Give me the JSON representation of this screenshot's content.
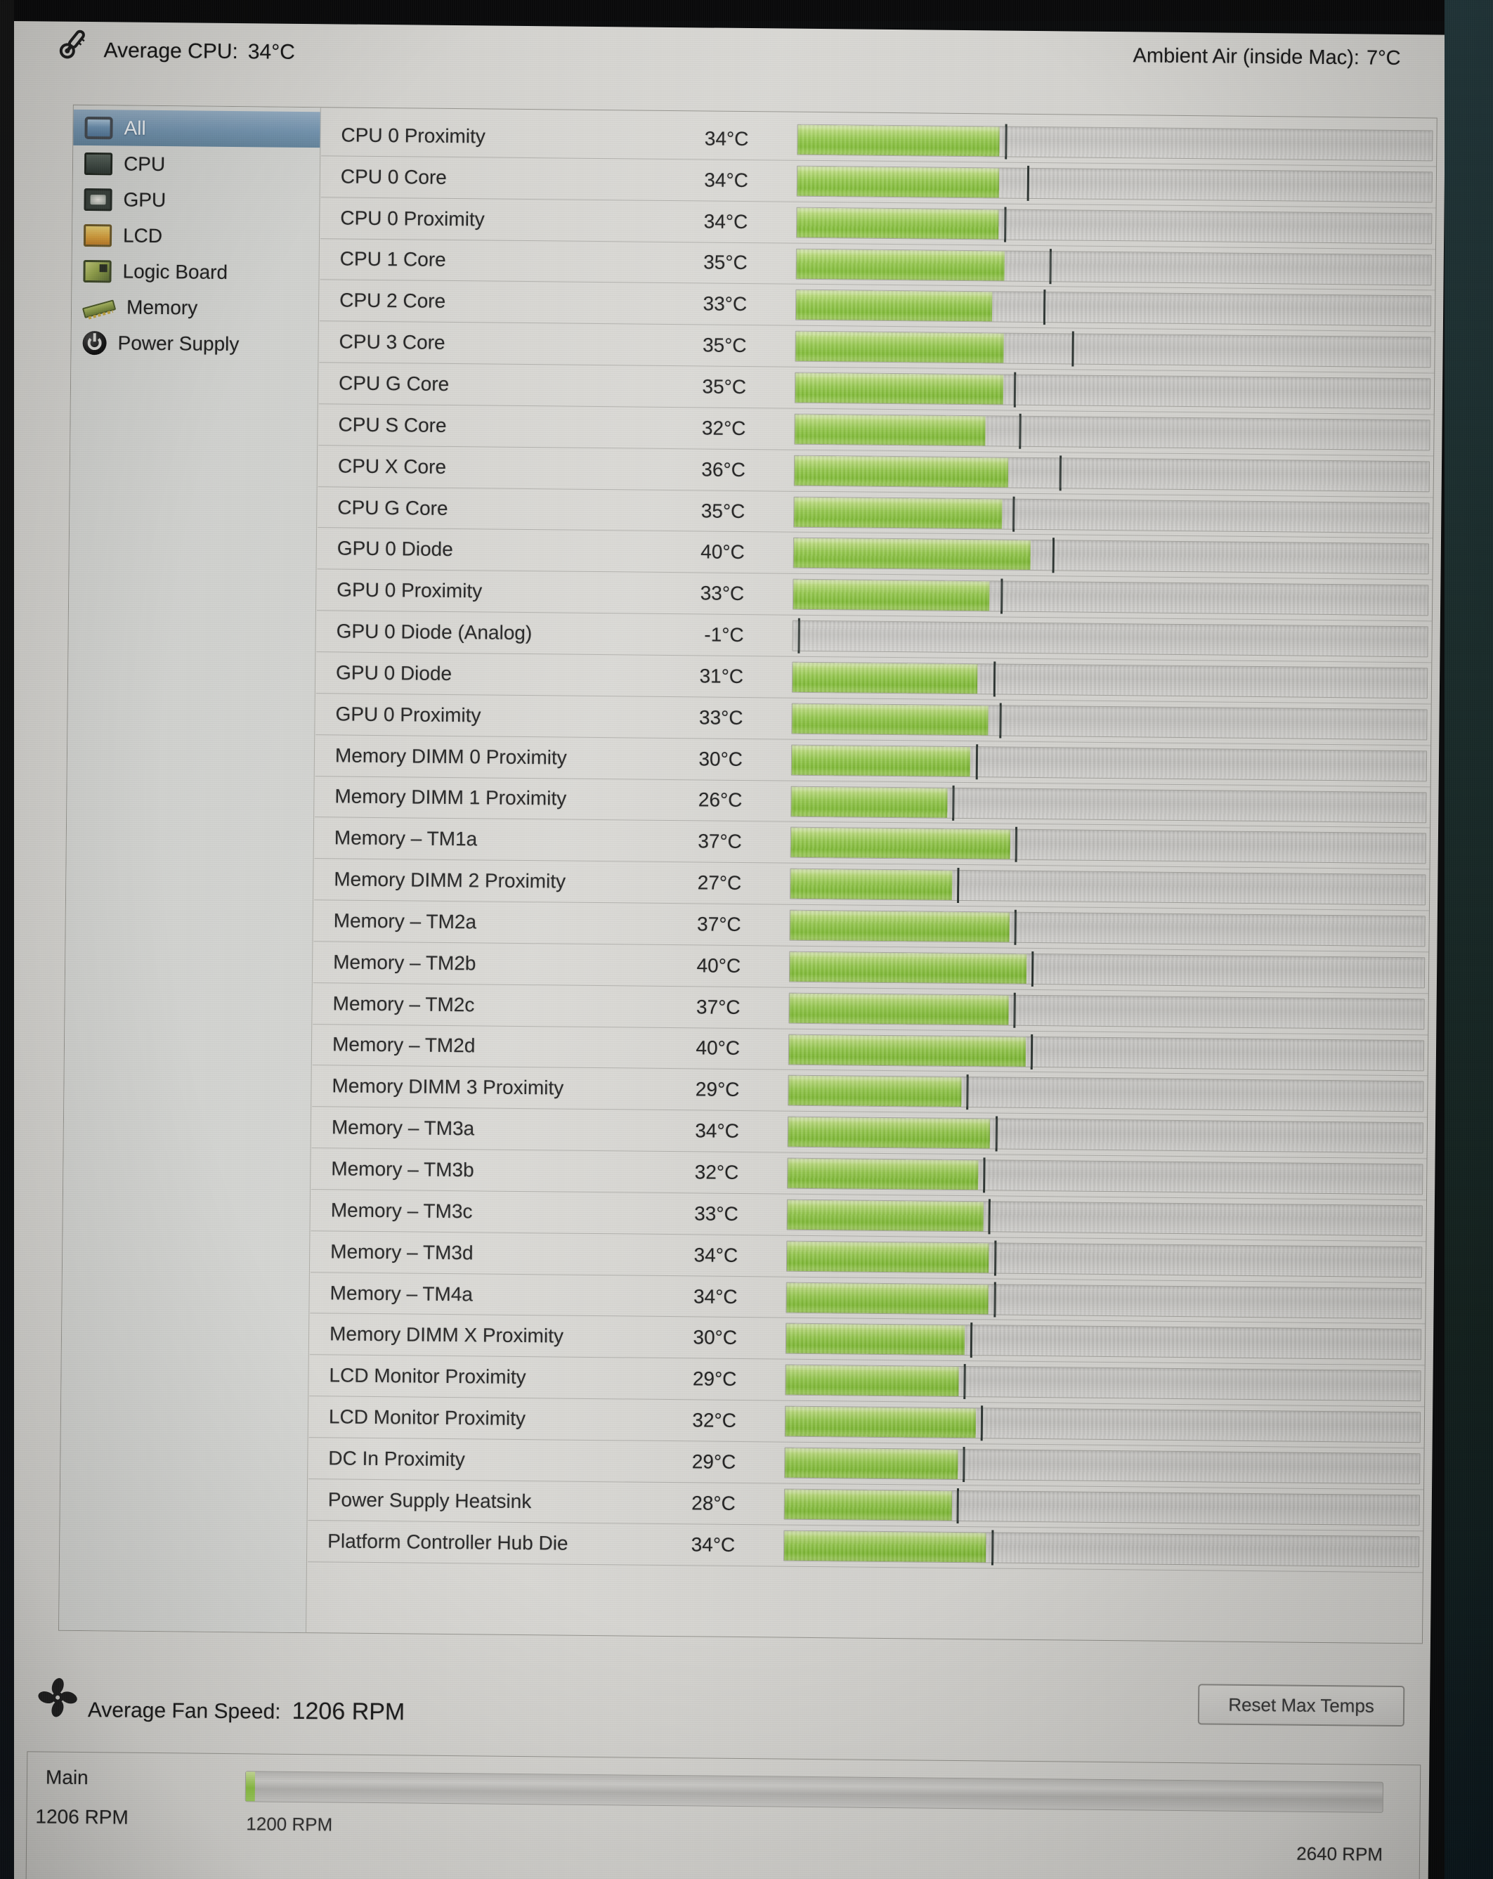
{
  "header": {
    "average_cpu_label": "Average CPU:",
    "average_cpu_value": "34°C",
    "ambient_label": "Ambient Air (inside Mac):",
    "ambient_value": "7°C"
  },
  "sidebar": {
    "items": [
      {
        "label": "All",
        "icon": "all-display-icon",
        "selected": true
      },
      {
        "label": "CPU",
        "icon": "cpu-chip-icon",
        "selected": false
      },
      {
        "label": "GPU",
        "icon": "gpu-chip-icon",
        "selected": false
      },
      {
        "label": "LCD",
        "icon": "lcd-icon",
        "selected": false
      },
      {
        "label": "Logic Board",
        "icon": "logic-board-icon",
        "selected": false
      },
      {
        "label": "Memory",
        "icon": "memory-icon",
        "selected": false
      },
      {
        "label": "Power Supply",
        "icon": "power-supply-icon",
        "selected": false
      }
    ]
  },
  "bar_scale": {
    "min": -1,
    "max": 109
  },
  "sensors": [
    {
      "name": "CPU 0 Proximity",
      "value": "34°C",
      "temp": 34,
      "max": 35
    },
    {
      "name": "CPU 0 Core",
      "value": "34°C",
      "temp": 34,
      "max": 39
    },
    {
      "name": "CPU 0 Proximity",
      "value": "34°C",
      "temp": 34,
      "max": 35
    },
    {
      "name": "CPU 1 Core",
      "value": "35°C",
      "temp": 35,
      "max": 43
    },
    {
      "name": "CPU 2 Core",
      "value": "33°C",
      "temp": 33,
      "max": 42
    },
    {
      "name": "CPU 3 Core",
      "value": "35°C",
      "temp": 35,
      "max": 47
    },
    {
      "name": "CPU G Core",
      "value": "35°C",
      "temp": 35,
      "max": 37
    },
    {
      "name": "CPU S Core",
      "value": "32°C",
      "temp": 32,
      "max": 38
    },
    {
      "name": "CPU X Core",
      "value": "36°C",
      "temp": 36,
      "max": 45
    },
    {
      "name": "CPU G Core",
      "value": "35°C",
      "temp": 35,
      "max": 37
    },
    {
      "name": "GPU 0 Diode",
      "value": "40°C",
      "temp": 40,
      "max": 44
    },
    {
      "name": "GPU 0 Proximity",
      "value": "33°C",
      "temp": 33,
      "max": 35
    },
    {
      "name": "GPU 0 Diode (Analog)",
      "value": "-1°C",
      "temp": -1,
      "max": 0
    },
    {
      "name": "GPU 0 Diode",
      "value": "31°C",
      "temp": 31,
      "max": 34
    },
    {
      "name": "GPU 0 Proximity",
      "value": "33°C",
      "temp": 33,
      "max": 35
    },
    {
      "name": "Memory DIMM 0 Proximity",
      "value": "30°C",
      "temp": 30,
      "max": 31
    },
    {
      "name": "Memory DIMM 1 Proximity",
      "value": "26°C",
      "temp": 26,
      "max": 27
    },
    {
      "name": "Memory – TM1a",
      "value": "37°C",
      "temp": 37,
      "max": 38
    },
    {
      "name": "Memory DIMM 2 Proximity",
      "value": "27°C",
      "temp": 27,
      "max": 28
    },
    {
      "name": "Memory – TM2a",
      "value": "37°C",
      "temp": 37,
      "max": 38
    },
    {
      "name": "Memory – TM2b",
      "value": "40°C",
      "temp": 40,
      "max": 41
    },
    {
      "name": "Memory – TM2c",
      "value": "37°C",
      "temp": 37,
      "max": 38
    },
    {
      "name": "Memory – TM2d",
      "value": "40°C",
      "temp": 40,
      "max": 41
    },
    {
      "name": "Memory DIMM 3 Proximity",
      "value": "29°C",
      "temp": 29,
      "max": 30
    },
    {
      "name": "Memory – TM3a",
      "value": "34°C",
      "temp": 34,
      "max": 35
    },
    {
      "name": "Memory – TM3b",
      "value": "32°C",
      "temp": 32,
      "max": 33
    },
    {
      "name": "Memory – TM3c",
      "value": "33°C",
      "temp": 33,
      "max": 34
    },
    {
      "name": "Memory – TM3d",
      "value": "34°C",
      "temp": 34,
      "max": 35
    },
    {
      "name": "Memory – TM4a",
      "value": "34°C",
      "temp": 34,
      "max": 35
    },
    {
      "name": "Memory DIMM X Proximity",
      "value": "30°C",
      "temp": 30,
      "max": 31
    },
    {
      "name": "LCD Monitor Proximity",
      "value": "29°C",
      "temp": 29,
      "max": 30
    },
    {
      "name": "LCD Monitor Proximity",
      "value": "32°C",
      "temp": 32,
      "max": 33
    },
    {
      "name": "DC In Proximity",
      "value": "29°C",
      "temp": 29,
      "max": 30
    },
    {
      "name": "Power Supply Heatsink",
      "value": "28°C",
      "temp": 28,
      "max": 29
    },
    {
      "name": "Platform Controller Hub Die",
      "value": "34°C",
      "temp": 34,
      "max": 35
    }
  ],
  "fan_summary": {
    "label": "Average Fan Speed:",
    "value": "1206 RPM",
    "reset_button_label": "Reset Max Temps"
  },
  "fan_detail": {
    "name": "Main",
    "current": "1206 RPM",
    "slider_min_label": "1200 RPM",
    "slider_max_label": "2640 RPM",
    "slider_value": 1206,
    "slider_min": 1200,
    "slider_max": 2640
  },
  "colors": {
    "bar_green": "#8bc43e",
    "selected_blue": "#7495b1",
    "window_gray": "#d7d6d2",
    "bezel_dark": "#0b0c0d",
    "max_marker": "#2b3330"
  }
}
